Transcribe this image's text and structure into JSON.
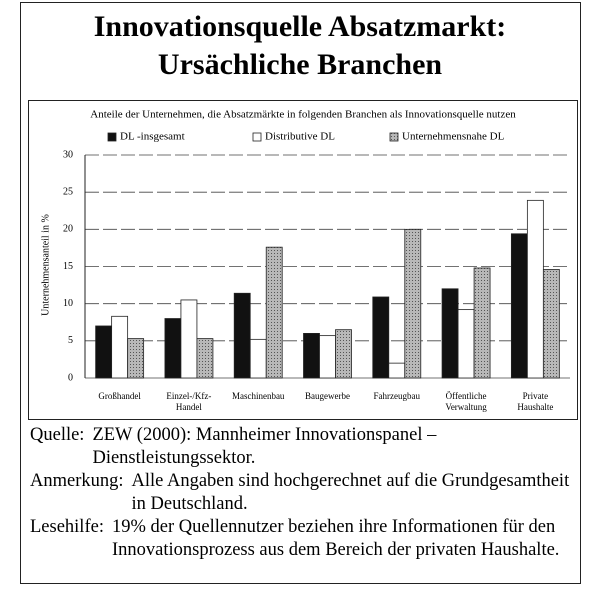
{
  "header": {
    "title_lines": [
      "Innovationsquelle Absatzmarkt:",
      "Ursächliche Branchen"
    ]
  },
  "chart_data": {
    "type": "bar",
    "title": "Anteile der Unternehmen, die Absatzmärkte in folgenden Branchen als Innovationsquelle nutzen",
    "y_label": "Unternehmensanteil in %",
    "categories": [
      "Großhandel",
      "Einzel-/Kfz-\nHandel",
      "Maschinenbau",
      "Baugewerbe",
      "Fahrzeugbau",
      "Öffentliche\nVerwaltung",
      "Private\nHaushalte"
    ],
    "series": [
      {
        "name": "DL -insgesamt",
        "color": "#111111",
        "values": [
          7,
          8,
          11.4,
          6,
          10.9,
          12,
          19.4
        ]
      },
      {
        "name": "Distributive DL",
        "color": "#ffffff",
        "values": [
          8.3,
          10.5,
          5.2,
          5.7,
          2,
          9.2,
          23.9
        ]
      },
      {
        "name": "Unternehmensnahe DL",
        "color": "#a8a8a8",
        "values": [
          5.3,
          5.3,
          17.6,
          6.5,
          20,
          14.8,
          14.6
        ]
      }
    ],
    "ylim": [
      0,
      30
    ],
    "yticks": [
      0,
      5,
      10,
      15,
      20,
      25,
      30
    ],
    "grid": true
  },
  "notes": [
    {
      "label": "Quelle:",
      "text": "ZEW (2000): Mannheimer Innovationspanel – Dienstleistungssektor."
    },
    {
      "label": "Anmerkung:",
      "text": "Alle Angaben sind hochgerechnet auf die Grundgesamtheit in Deutschland."
    },
    {
      "label": "Lesehilfe:",
      "text": "19% der Quellennutzer beziehen ihre Informationen für den Innovationsprozess aus dem Bereich der privaten Haushalte."
    }
  ]
}
